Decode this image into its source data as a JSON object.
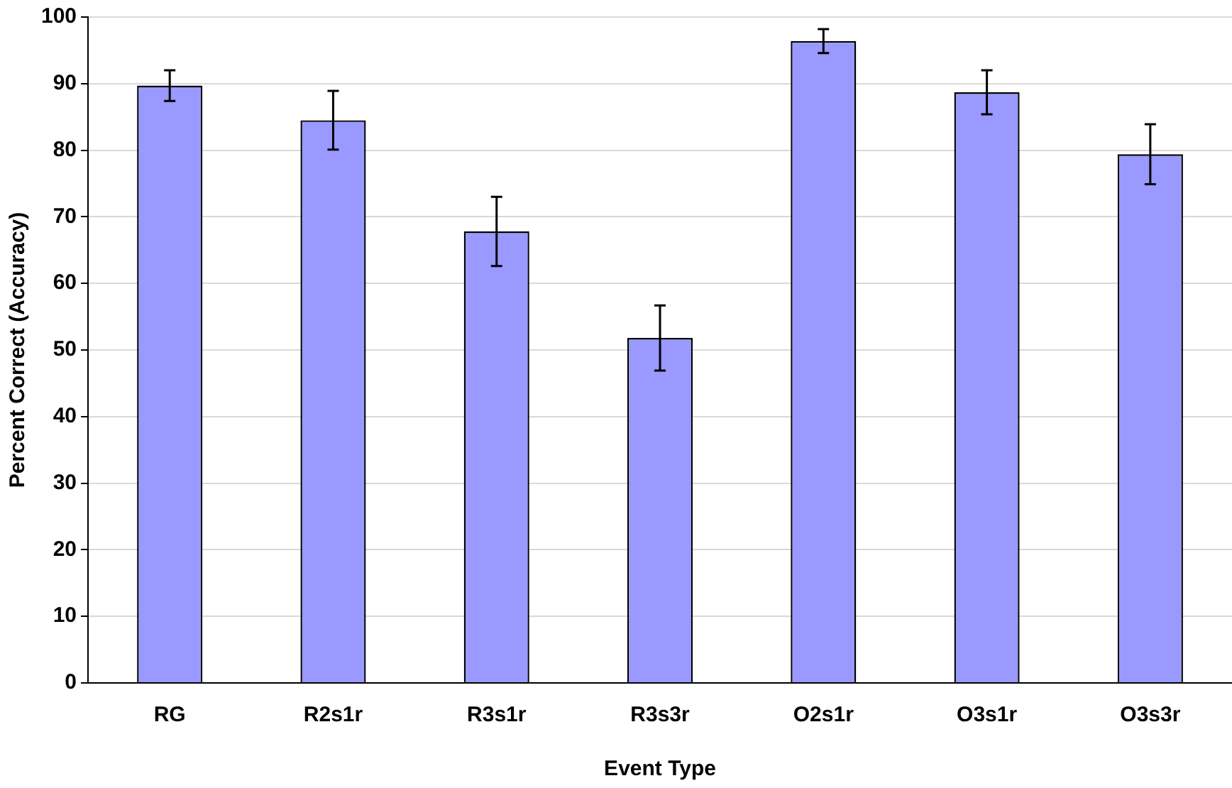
{
  "chart_data": {
    "type": "bar",
    "xlabel": "Event Type",
    "ylabel": "Percent Correct (Accuracy)",
    "categories": [
      "RG",
      "R2s1r",
      "R3s1r",
      "R3s3r",
      "O2s1r",
      "O3s1r",
      "O3s3r"
    ],
    "values": [
      89.7,
      84.5,
      67.8,
      51.8,
      96.4,
      88.7,
      79.4
    ],
    "errors": [
      2.3,
      4.4,
      5.2,
      4.9,
      1.8,
      3.3,
      4.5
    ],
    "color": "#9999ff",
    "ylim": [
      0,
      100
    ],
    "yticks": [
      0,
      10,
      20,
      30,
      40,
      50,
      60,
      70,
      80,
      90,
      100
    ],
    "grid": "y",
    "legend": false
  }
}
